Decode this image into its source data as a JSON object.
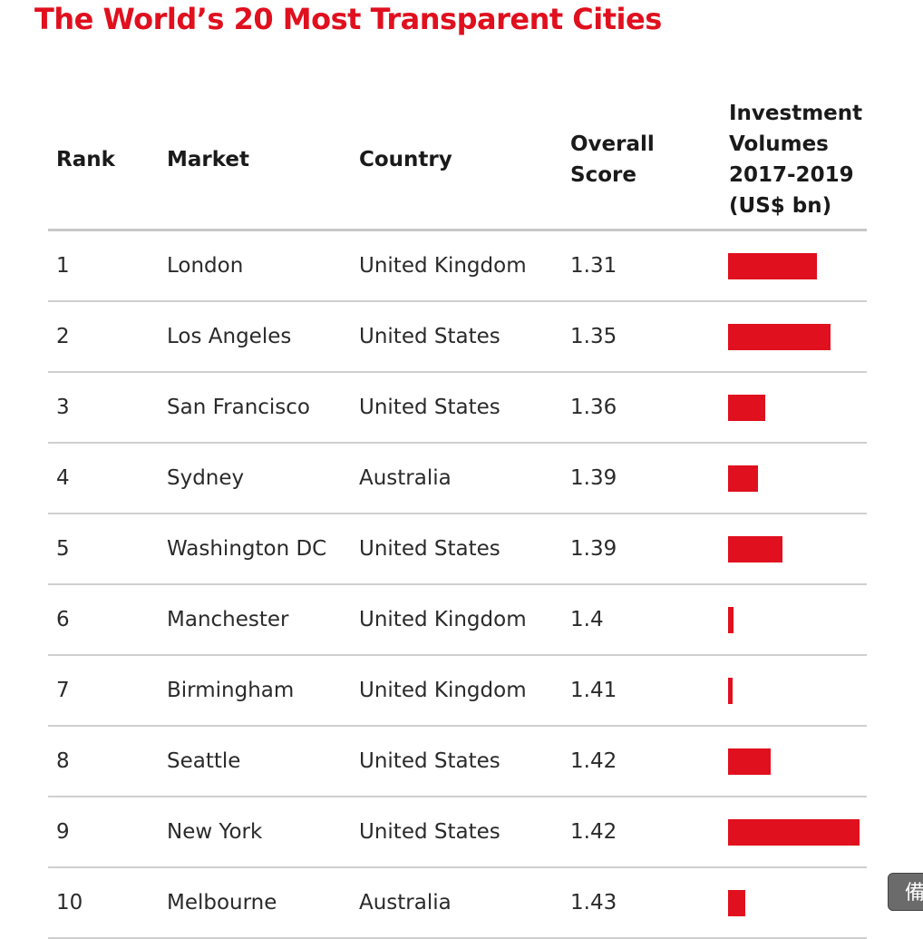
{
  "title": "The World’s 20 Most Transparent Cities",
  "side_button": "備",
  "colors": {
    "accent": "#e0101e"
  },
  "chart_data": {
    "type": "table",
    "title": "The World’s 20 Most Transparent Cities",
    "columns": [
      "Rank",
      "Market",
      "Country",
      "Overall Score",
      "Investment Volumes 2017-2019 (US$ bn)"
    ],
    "header_lines": {
      "rank": [
        "Rank"
      ],
      "market": [
        "Market"
      ],
      "country": [
        "Country"
      ],
      "score": [
        "Overall",
        "Score"
      ],
      "invest": [
        "Investment",
        "Volumes",
        "2017-2019",
        "(US$ bn)"
      ]
    },
    "rows": [
      {
        "rank": "1",
        "market": "London",
        "country": "United Kingdom",
        "score": "1.31",
        "investment": 100
      },
      {
        "rank": "2",
        "market": "Los Angeles",
        "country": "United States",
        "score": "1.35",
        "investment": 115
      },
      {
        "rank": "3",
        "market": "San Francisco",
        "country": "United States",
        "score": "1.36",
        "investment": 42
      },
      {
        "rank": "4",
        "market": "Sydney",
        "country": "Australia",
        "score": "1.39",
        "investment": 34
      },
      {
        "rank": "5",
        "market": "Washington DC",
        "country": "United States",
        "score": "1.39",
        "investment": 61
      },
      {
        "rank": "6",
        "market": "Manchester",
        "country": "United Kingdom",
        "score": "1.4",
        "investment": 6
      },
      {
        "rank": "7",
        "market": "Birmingham",
        "country": "United Kingdom",
        "score": "1.41",
        "investment": 5
      },
      {
        "rank": "8",
        "market": "Seattle",
        "country": "United States",
        "score": "1.42",
        "investment": 48
      },
      {
        "rank": "9",
        "market": "New York",
        "country": "United States",
        "score": "1.42",
        "investment": 148
      },
      {
        "rank": "10",
        "market": "Melbourne",
        "country": "Australia",
        "score": "1.43",
        "investment": 19
      }
    ],
    "investment_max": 148
  }
}
